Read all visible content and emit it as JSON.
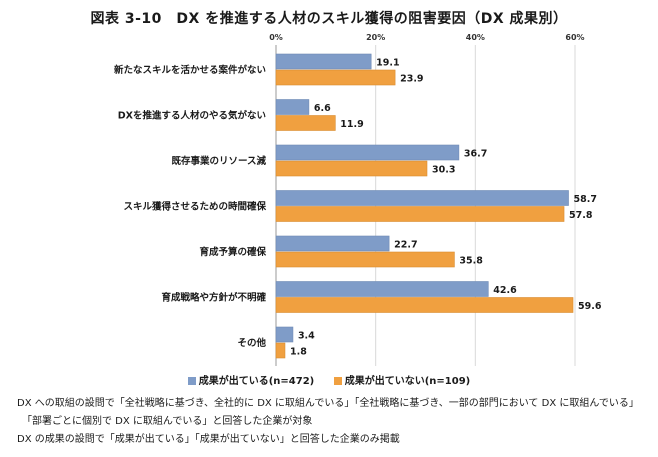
{
  "title": "図表 3-10　DX を推進する人材のスキル獲得の阻害要因（DX 成果別）",
  "chart_data": {
    "type": "bar",
    "orientation": "horizontal",
    "categories": [
      "新たなスキルを活かせる案件がない",
      "DXを推進する人材のやる気がない",
      "既存事業のリソース減",
      "スキル獲得させるための時間確保",
      "育成予算の確保",
      "育成戦略や方針が不明確",
      "その他"
    ],
    "series": [
      {
        "name": "成果が出ている(n=472)",
        "color": "#7f9cc8",
        "values": [
          19.1,
          6.6,
          36.7,
          58.7,
          22.7,
          42.6,
          3.4
        ]
      },
      {
        "name": "成果が出ていない(n=109)",
        "color": "#f0a040",
        "values": [
          23.9,
          11.9,
          30.3,
          57.8,
          35.8,
          59.6,
          1.8
        ]
      }
    ],
    "xlim": [
      0,
      60
    ],
    "xticks": [
      "0%",
      "20%",
      "40%",
      "60%"
    ],
    "grid": true,
    "legend_position": "bottom"
  },
  "notes": [
    "DX への取組の設問で「全社戦略に基づき、全社的に DX に取組んでいる」「全社戦略に基づき、一部の部門において DX に取組んでいる」",
    "「部署ごとに個別で DX に取組んでいる」と回答した企業が対象",
    "DX の成果の設問で「成果が出ている」「成果が出ていない」と回答した企業のみ掲載"
  ]
}
